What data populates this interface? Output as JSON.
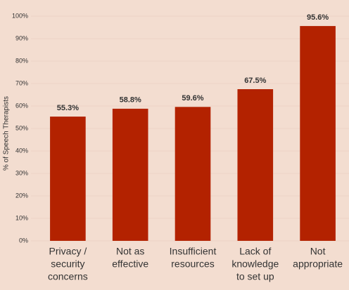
{
  "chart_data": {
    "type": "bar",
    "y_axis_label": "% of Speech Therapists",
    "categories": [
      [
        "Privacy /",
        "security",
        "concerns"
      ],
      [
        "Not as",
        "effective"
      ],
      [
        "Insufficient",
        "resources"
      ],
      [
        "Lack of",
        "knowledge",
        "to set up"
      ],
      [
        "Not",
        "appropriate"
      ]
    ],
    "values": [
      55.3,
      58.8,
      59.6,
      67.5,
      95.6
    ],
    "value_labels": [
      "55.3%",
      "58.8%",
      "59.6%",
      "67.5%",
      "95.6%"
    ],
    "color": "#b32200",
    "ylim": [
      0,
      100
    ],
    "yticks": [
      {
        "value": 0,
        "label": "0%"
      },
      {
        "value": 10,
        "label": "10%"
      },
      {
        "value": 20,
        "label": "20%"
      },
      {
        "value": 30,
        "label": "30%"
      },
      {
        "value": 40,
        "label": "40%"
      },
      {
        "value": 50,
        "label": "50%"
      },
      {
        "value": 60,
        "label": "60%"
      },
      {
        "value": 70,
        "label": "70%"
      },
      {
        "value": 80,
        "label": "80%"
      },
      {
        "value": 90,
        "label": "90%"
      },
      {
        "value": 100,
        "label": "100%"
      }
    ],
    "grid": true
  }
}
